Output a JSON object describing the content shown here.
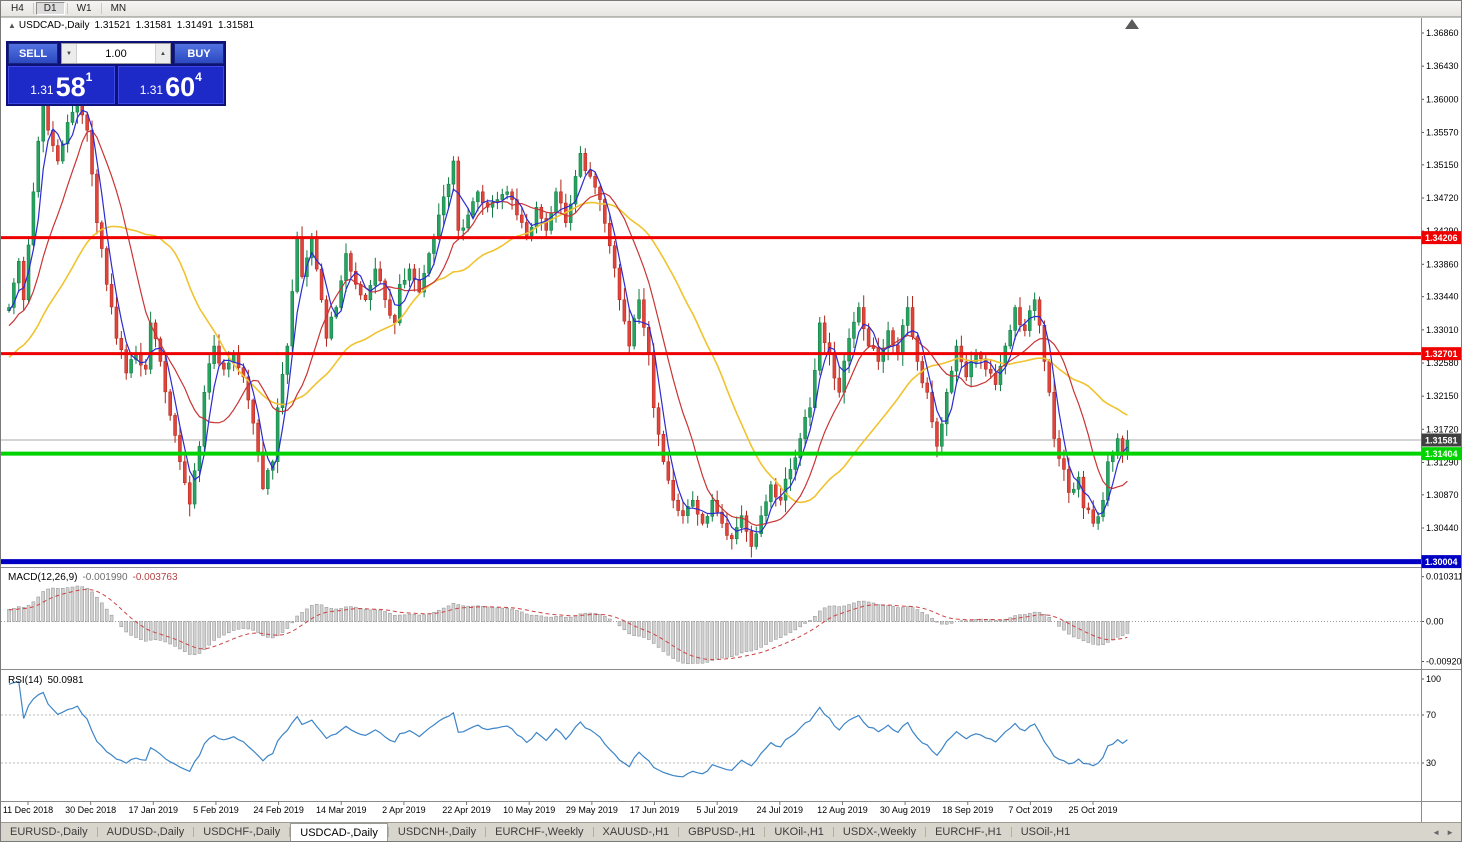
{
  "window": {
    "title": "USDCAD-,Daily"
  },
  "toolbar": {
    "timeframes": [
      {
        "label": "H4",
        "active": false
      },
      {
        "label": "D1",
        "active": true
      },
      {
        "label": "W1",
        "active": false
      },
      {
        "label": "MN",
        "active": false
      }
    ]
  },
  "chart_info": {
    "symbol": "USDCAD-,Daily",
    "open": "1.31521",
    "high": "1.31581",
    "low": "1.31491",
    "close": "1.31581"
  },
  "trade_panel": {
    "sell_label": "SELL",
    "buy_label": "BUY",
    "volume": "1.00",
    "sell_price_prefix": "1.31",
    "sell_price_big": "58",
    "sell_price_sup": "1",
    "buy_price_prefix": "1.31",
    "buy_price_big": "60",
    "buy_price_sup": "4"
  },
  "indicators": {
    "macd": {
      "label": "MACD(12,26,9)",
      "value_main": "-0.001990",
      "value_signal": "-0.003763",
      "axis_labels": [
        "0.010311",
        "0.00",
        "-0.009203"
      ]
    },
    "rsi": {
      "label": "RSI(14)",
      "value": "50.0981",
      "axis_labels": [
        "100",
        "70",
        "30"
      ]
    }
  },
  "tabs": [
    {
      "label": "EURUSD-,Daily",
      "active": false
    },
    {
      "label": "AUDUSD-,Daily",
      "active": false
    },
    {
      "label": "USDCHF-,Daily",
      "active": false
    },
    {
      "label": "USDCAD-,Daily",
      "active": true
    },
    {
      "label": "USDCNH-,Daily",
      "active": false
    },
    {
      "label": "EURCHF-,Weekly",
      "active": false
    },
    {
      "label": "XAUUSD-,H1",
      "active": false
    },
    {
      "label": "GBPUSD-,H1",
      "active": false
    },
    {
      "label": "UKOil-,H1",
      "active": false
    },
    {
      "label": "USDX-,Weekly",
      "active": false
    },
    {
      "label": "EURCHF-,H1",
      "active": false
    },
    {
      "label": "USOil-,H1",
      "active": false
    }
  ],
  "tab_scroll": {
    "left": "◄",
    "right": "►"
  },
  "colors": {
    "candle_up": "#25a35f",
    "candle_up_dark": "#0d7a40",
    "candle_down": "#e0443a",
    "candle_down_dark": "#b02318",
    "ma_fast": "#2b2bd2",
    "ma_mid": "#c93434",
    "ma_slow": "#f0c330",
    "macd_hist_fill": "#d2d2d2",
    "macd_hist_edge": "#8f8f8f",
    "macd_signal": "#cc4444",
    "rsi_line": "#3d85c8",
    "current_price_line": "#a8a8a8",
    "current_tag_bg": "#404040"
  },
  "chart_data": {
    "type": "candlestick",
    "symbol": "USDCAD",
    "timeframe": "Daily",
    "ohlc_current": {
      "open": 1.31521,
      "high": 1.31581,
      "low": 1.31491,
      "close": 1.31581
    },
    "bid": 1.31581,
    "ask": 1.31604,
    "candle_count": 230,
    "y_range": [
      1.2993,
      1.3707
    ],
    "y_axis_labels": [
      "1.36860",
      "1.36430",
      "1.36000",
      "1.35570",
      "1.35150",
      "1.34720",
      "1.34290",
      "1.33860",
      "1.33440",
      "1.33010",
      "1.32580",
      "1.32150",
      "1.31720",
      "1.31290",
      "1.30870",
      "1.30440"
    ],
    "x_labels": [
      "11 Dec 2018",
      "30 Dec 2018",
      "17 Jan 2019",
      "5 Feb 2019",
      "24 Feb 2019",
      "14 Mar 2019",
      "2 Apr 2019",
      "22 Apr 2019",
      "10 May 2019",
      "29 May 2019",
      "17 Jun 2019",
      "5 Jul 2019",
      "24 Jul 2019",
      "12 Aug 2019",
      "30 Aug 2019",
      "18 Sep 2019",
      "7 Oct 2019",
      "25 Oct 2019"
    ],
    "levels": [
      {
        "price": 1.34206,
        "label": "1.34206",
        "color": "#ee0000",
        "width": 3
      },
      {
        "price": 1.32701,
        "label": "1.32701",
        "color": "#ee0000",
        "width": 3
      },
      {
        "price": 1.31404,
        "label": "1.31404",
        "color": "#00d300",
        "width": 4
      },
      {
        "price": 1.30004,
        "label": "1.30004",
        "color": "#0000c2",
        "width": 5
      }
    ],
    "current_price": {
      "value": 1.31581,
      "label": "1.31581"
    },
    "macd_values": {
      "main": -0.00199,
      "signal": -0.003763
    },
    "macd_axis_range": [
      -0.009203,
      0.010311
    ],
    "rsi_value": 50.0981,
    "rsi_levels": [
      70,
      30
    ],
    "price_anchors": [
      [
        0,
        1.333
      ],
      [
        2,
        1.339
      ],
      [
        3,
        1.334
      ],
      [
        5,
        1.348
      ],
      [
        7,
        1.36
      ],
      [
        8,
        1.356
      ],
      [
        10,
        1.352
      ],
      [
        12,
        1.357
      ],
      [
        14,
        1.361
      ],
      [
        16,
        1.356
      ],
      [
        18,
        1.344
      ],
      [
        20,
        1.336
      ],
      [
        22,
        1.329
      ],
      [
        24,
        1.3245
      ],
      [
        26,
        1.327
      ],
      [
        28,
        1.325
      ],
      [
        29,
        1.331
      ],
      [
        31,
        1.326
      ],
      [
        33,
        1.319
      ],
      [
        35,
        1.313
      ],
      [
        37,
        1.3075
      ],
      [
        39,
        1.315
      ],
      [
        40,
        1.322
      ],
      [
        42,
        1.328
      ],
      [
        44,
        1.325
      ],
      [
        46,
        1.327
      ],
      [
        48,
        1.324
      ],
      [
        50,
        1.318
      ],
      [
        52,
        1.3095
      ],
      [
        54,
        1.313
      ],
      [
        55,
        1.32
      ],
      [
        57,
        1.328
      ],
      [
        59,
        1.342
      ],
      [
        60,
        1.337
      ],
      [
        62,
        1.342
      ],
      [
        64,
        1.334
      ],
      [
        65,
        1.329
      ],
      [
        67,
        1.333
      ],
      [
        69,
        1.34
      ],
      [
        71,
        1.336
      ],
      [
        73,
        1.334
      ],
      [
        75,
        1.338
      ],
      [
        77,
        1.334
      ],
      [
        79,
        1.331
      ],
      [
        80,
        1.336
      ],
      [
        82,
        1.338
      ],
      [
        84,
        1.335
      ],
      [
        86,
        1.34
      ],
      [
        88,
        1.345
      ],
      [
        90,
        1.349
      ],
      [
        91,
        1.352
      ],
      [
        92,
        1.343
      ],
      [
        94,
        1.345
      ],
      [
        96,
        1.348
      ],
      [
        98,
        1.346
      ],
      [
        100,
        1.347
      ],
      [
        102,
        1.348
      ],
      [
        104,
        1.345
      ],
      [
        106,
        1.342
      ],
      [
        108,
        1.346
      ],
      [
        110,
        1.343
      ],
      [
        112,
        1.348
      ],
      [
        114,
        1.344
      ],
      [
        116,
        1.35
      ],
      [
        117,
        1.353
      ],
      [
        119,
        1.35
      ],
      [
        121,
        1.347
      ],
      [
        123,
        1.341
      ],
      [
        125,
        1.334
      ],
      [
        127,
        1.328
      ],
      [
        129,
        1.334
      ],
      [
        131,
        1.327
      ],
      [
        132,
        1.32
      ],
      [
        134,
        1.313
      ],
      [
        136,
        1.308
      ],
      [
        138,
        1.306
      ],
      [
        140,
        1.308
      ],
      [
        142,
        1.305
      ],
      [
        144,
        1.308
      ],
      [
        146,
        1.305
      ],
      [
        148,
        1.303
      ],
      [
        150,
        1.306
      ],
      [
        152,
        1.302
      ],
      [
        154,
        1.306
      ],
      [
        156,
        1.31
      ],
      [
        158,
        1.308
      ],
      [
        160,
        1.312
      ],
      [
        162,
        1.316
      ],
      [
        164,
        1.32
      ],
      [
        166,
        1.331
      ],
      [
        168,
        1.327
      ],
      [
        170,
        1.322
      ],
      [
        172,
        1.329
      ],
      [
        174,
        1.333
      ],
      [
        176,
        1.328
      ],
      [
        178,
        1.326
      ],
      [
        180,
        1.33
      ],
      [
        182,
        1.327
      ],
      [
        184,
        1.333
      ],
      [
        186,
        1.326
      ],
      [
        188,
        1.322
      ],
      [
        190,
        1.315
      ],
      [
        192,
        1.322
      ],
      [
        194,
        1.328
      ],
      [
        196,
        1.324
      ],
      [
        198,
        1.327
      ],
      [
        200,
        1.325
      ],
      [
        202,
        1.323
      ],
      [
        204,
        1.328
      ],
      [
        206,
        1.333
      ],
      [
        208,
        1.33
      ],
      [
        210,
        1.334
      ],
      [
        212,
        1.326
      ],
      [
        213,
        1.322
      ],
      [
        214,
        1.316
      ],
      [
        216,
        1.312
      ],
      [
        217,
        1.309
      ],
      [
        219,
        1.311
      ],
      [
        220,
        1.307
      ],
      [
        222,
        1.305
      ],
      [
        224,
        1.308
      ],
      [
        225,
        1.313
      ],
      [
        227,
        1.316
      ],
      [
        228,
        1.314
      ],
      [
        229,
        1.31581
      ]
    ]
  }
}
